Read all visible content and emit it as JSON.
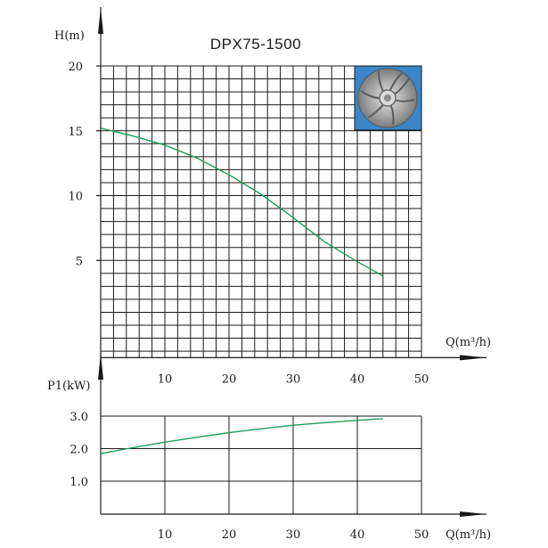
{
  "chart_data": [
    {
      "type": "line",
      "title": "DPX75-1500",
      "ylabel": "H(m)",
      "xlabel": "Q(m³/h)",
      "xlim": [
        0,
        50
      ],
      "ylim": [
        -2.5,
        20
      ],
      "x_ticks": [
        10,
        20,
        30,
        40,
        50
      ],
      "y_ticks": [
        5,
        10,
        15,
        20
      ],
      "grid": true,
      "series": [
        {
          "name": "H",
          "color": "#1e9e5a",
          "x": [
            0,
            5,
            10,
            15,
            20,
            25,
            30,
            35,
            40,
            44
          ],
          "y": [
            15.2,
            14.6,
            13.9,
            12.9,
            11.6,
            10.1,
            8.3,
            6.4,
            4.9,
            3.8
          ]
        }
      ],
      "inset_image": "impeller-photo"
    },
    {
      "type": "line",
      "title": "",
      "ylabel": "P1(kW)",
      "xlabel": "Q(m³/h)",
      "xlim": [
        0,
        50
      ],
      "ylim": [
        0,
        3.0
      ],
      "x_ticks": [
        10,
        20,
        30,
        40,
        50
      ],
      "y_ticks": [
        {
          "value": 1.0,
          "label": "1.0"
        },
        {
          "value": 2.0,
          "label": "2.0"
        },
        {
          "value": 3.0,
          "label": "3.0"
        }
      ],
      "grid": true,
      "series": [
        {
          "name": "P1",
          "color": "#1e9e5a",
          "x": [
            0,
            5,
            10,
            15,
            20,
            25,
            30,
            35,
            40,
            44
          ],
          "y": [
            1.85,
            2.03,
            2.2,
            2.35,
            2.49,
            2.61,
            2.72,
            2.8,
            2.87,
            2.92
          ]
        }
      ]
    }
  ]
}
